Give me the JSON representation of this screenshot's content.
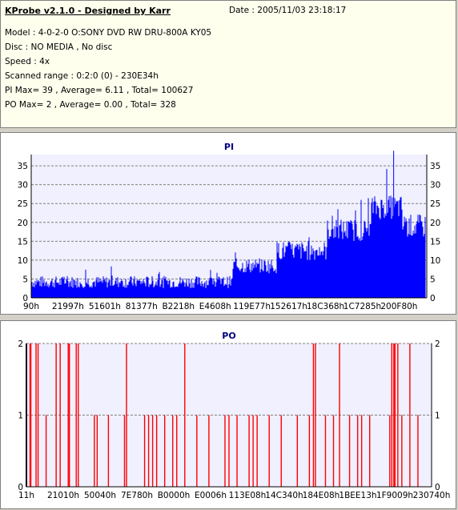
{
  "info": {
    "title": "KProbe v2.1.0 - Designed by Karr",
    "date": "Date : 2005/11/03 23:18:17",
    "model": "Model : 4-0-2-0 O:SONY    DVD RW DRU-800A  KY05",
    "disc": "Disc : NO MEDIA , No disc",
    "speed": "Speed : 4x",
    "range": "Scanned range : 0:2:0 (0) - 230E34h",
    "pi_summary": "PI Max= 39 , Average= 6.11 , Total= 100627",
    "po_summary": "PO Max= 2 , Average= 0.00 , Total= 328"
  },
  "chart_data": [
    {
      "type": "bar",
      "title": "PI",
      "ylim": [
        0,
        38
      ],
      "yticks": [
        "0",
        "5",
        "10",
        "15",
        "20",
        "25",
        "30",
        "35"
      ],
      "xticks": [
        "90h",
        "21997h",
        "51601h",
        "81377h",
        "B2218h",
        "E4608h",
        "119E77h",
        "152617h",
        "18C368h",
        "1C7285h",
        "200F80h"
      ],
      "color": "#0000ff",
      "grid": true,
      "segments": [
        {
          "from": 0.0,
          "to": 0.51,
          "base": 4.2,
          "noise": 1.6,
          "peak": 8.5
        },
        {
          "from": 0.51,
          "to": 0.62,
          "base": 8.5,
          "noise": 2.0,
          "peak": 13
        },
        {
          "from": 0.62,
          "to": 0.75,
          "base": 12.5,
          "noise": 2.6,
          "peak": 17
        },
        {
          "from": 0.75,
          "to": 0.86,
          "base": 18,
          "noise": 3.0,
          "peak": 27
        },
        {
          "from": 0.86,
          "to": 0.94,
          "base": 24,
          "noise": 3.2,
          "peak": 39
        },
        {
          "from": 0.94,
          "to": 1.0,
          "base": 19,
          "noise": 3.2,
          "peak": 25
        }
      ],
      "max": 39,
      "average": 6.11
    },
    {
      "type": "bar",
      "title": "PO",
      "ylim": [
        0,
        2
      ],
      "yticks": [
        "0",
        "1",
        "2"
      ],
      "xticks": [
        "11h",
        "21010h",
        "50040h",
        "7E780h",
        "B0000h",
        "E0006h",
        "113E08h",
        "14C340h",
        "184E08h",
        "1BEE13h",
        "1F9009h",
        "230740h"
      ],
      "color": "#ff0000",
      "grid": true,
      "spikes": [
        {
          "x": 0.005,
          "v": 2
        },
        {
          "x": 0.007,
          "v": 2
        },
        {
          "x": 0.02,
          "v": 2
        },
        {
          "x": 0.025,
          "v": 2
        },
        {
          "x": 0.045,
          "v": 1
        },
        {
          "x": 0.07,
          "v": 2
        },
        {
          "x": 0.08,
          "v": 2
        },
        {
          "x": 0.1,
          "v": 2
        },
        {
          "x": 0.103,
          "v": 2
        },
        {
          "x": 0.12,
          "v": 2
        },
        {
          "x": 0.125,
          "v": 2
        },
        {
          "x": 0.165,
          "v": 1
        },
        {
          "x": 0.172,
          "v": 1
        },
        {
          "x": 0.2,
          "v": 1
        },
        {
          "x": 0.24,
          "v": 1
        },
        {
          "x": 0.245,
          "v": 2
        },
        {
          "x": 0.29,
          "v": 1
        },
        {
          "x": 0.3,
          "v": 1
        },
        {
          "x": 0.31,
          "v": 1
        },
        {
          "x": 0.32,
          "v": 1
        },
        {
          "x": 0.34,
          "v": 1
        },
        {
          "x": 0.36,
          "v": 1
        },
        {
          "x": 0.37,
          "v": 1
        },
        {
          "x": 0.39,
          "v": 2
        },
        {
          "x": 0.42,
          "v": 1
        },
        {
          "x": 0.45,
          "v": 1
        },
        {
          "x": 0.49,
          "v": 1
        },
        {
          "x": 0.5,
          "v": 1
        },
        {
          "x": 0.52,
          "v": 1
        },
        {
          "x": 0.55,
          "v": 1
        },
        {
          "x": 0.56,
          "v": 1
        },
        {
          "x": 0.57,
          "v": 1
        },
        {
          "x": 0.6,
          "v": 1
        },
        {
          "x": 0.63,
          "v": 1
        },
        {
          "x": 0.67,
          "v": 1
        },
        {
          "x": 0.7,
          "v": 1
        },
        {
          "x": 0.71,
          "v": 2
        },
        {
          "x": 0.715,
          "v": 2
        },
        {
          "x": 0.74,
          "v": 1
        },
        {
          "x": 0.76,
          "v": 1
        },
        {
          "x": 0.775,
          "v": 2
        },
        {
          "x": 0.8,
          "v": 1
        },
        {
          "x": 0.82,
          "v": 1
        },
        {
          "x": 0.83,
          "v": 1
        },
        {
          "x": 0.85,
          "v": 1
        },
        {
          "x": 0.9,
          "v": 1
        },
        {
          "x": 0.905,
          "v": 2
        },
        {
          "x": 0.91,
          "v": 2
        },
        {
          "x": 0.913,
          "v": 2
        },
        {
          "x": 0.92,
          "v": 2
        },
        {
          "x": 0.93,
          "v": 1
        },
        {
          "x": 0.95,
          "v": 2
        },
        {
          "x": 0.97,
          "v": 1
        }
      ],
      "max": 2,
      "average": 0.0
    }
  ]
}
